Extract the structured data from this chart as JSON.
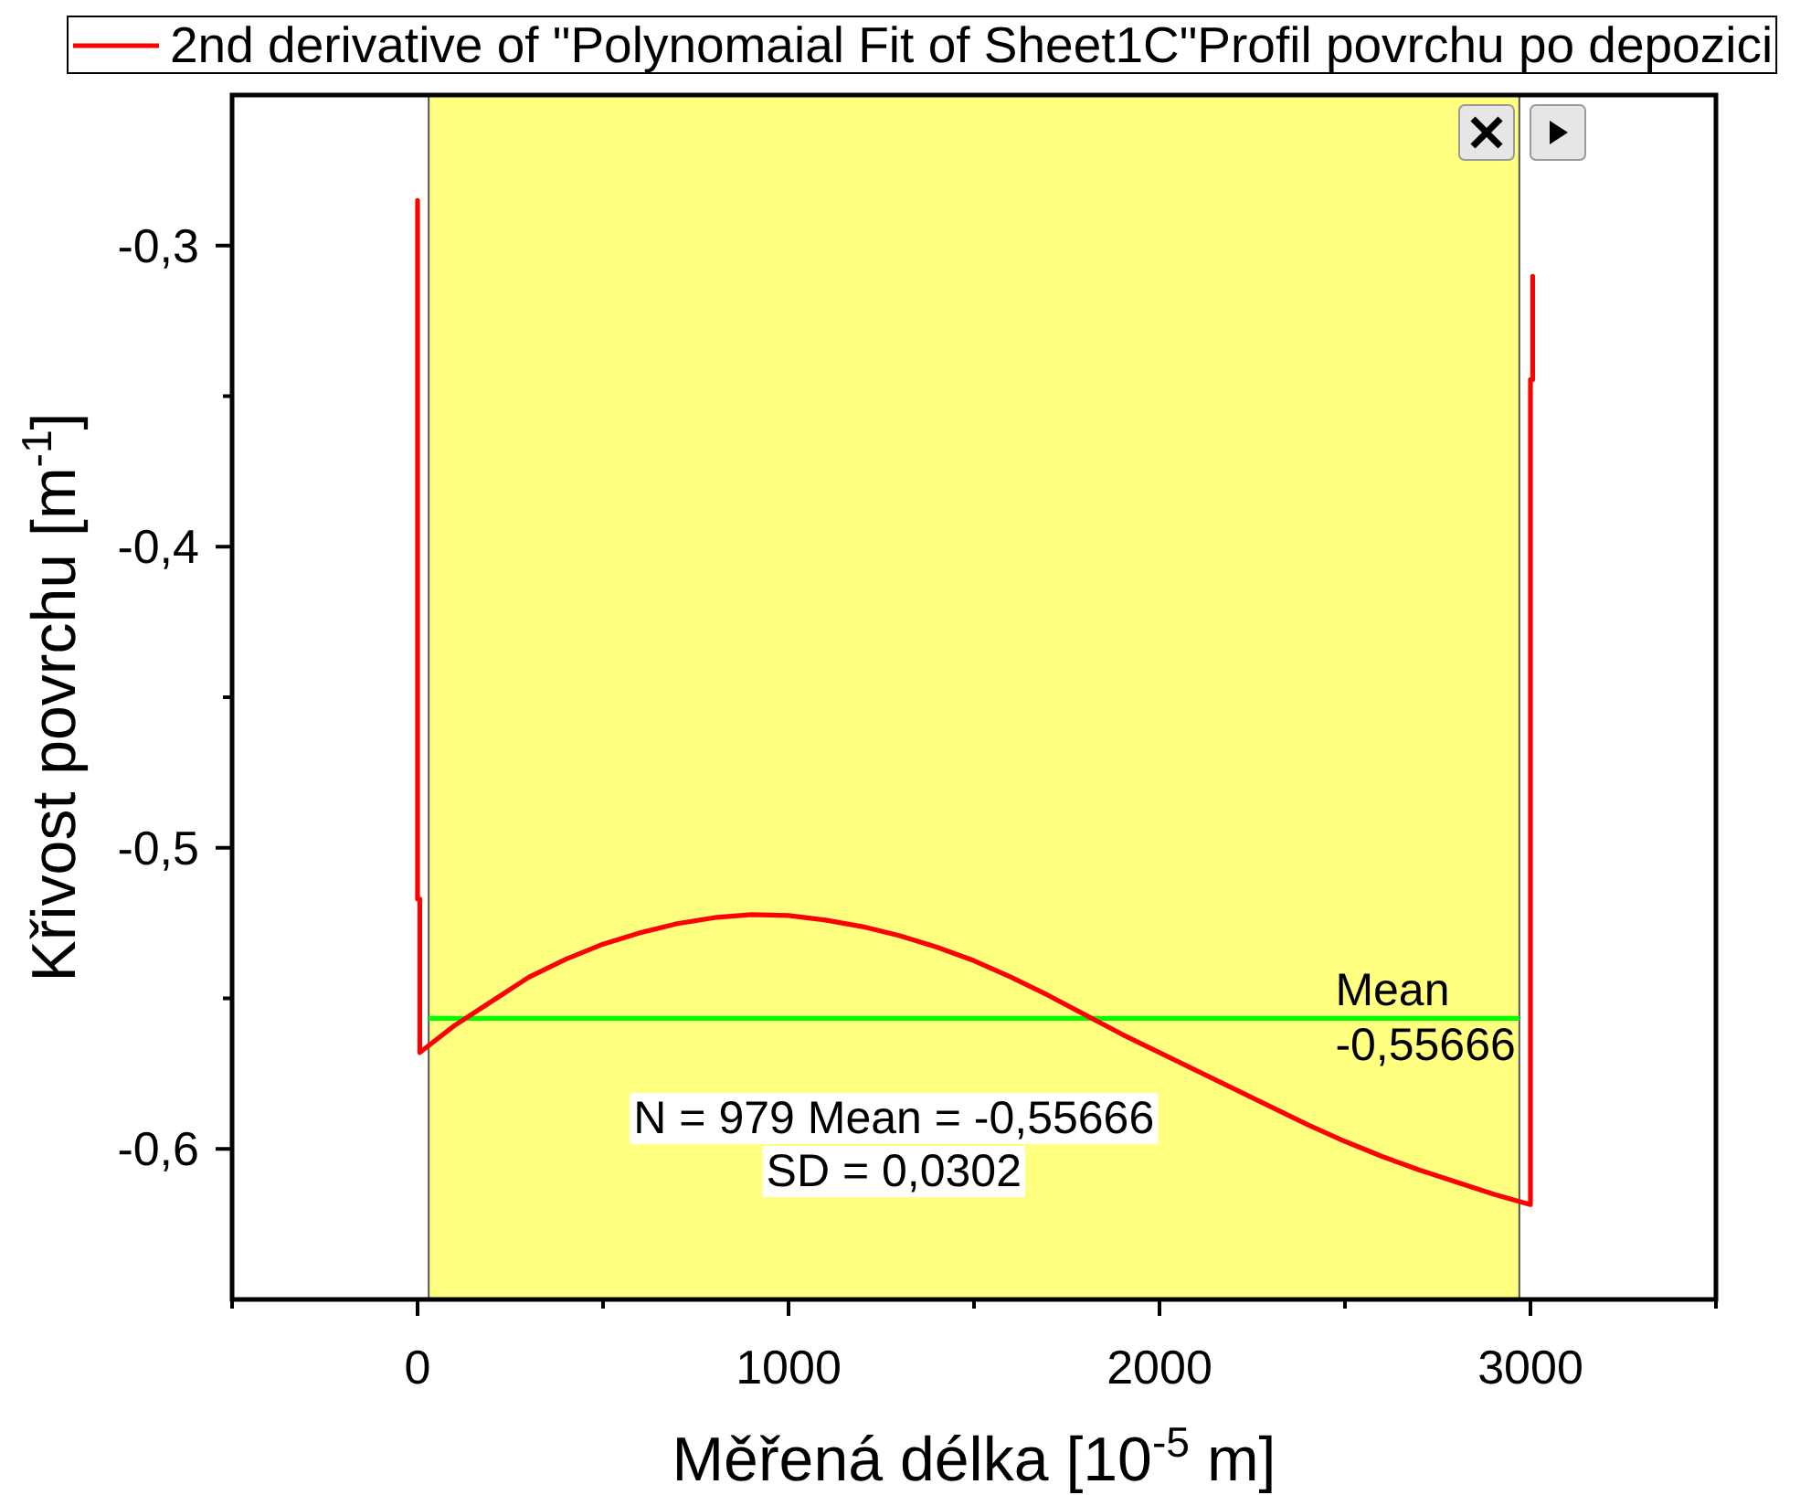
{
  "chart_data": {
    "type": "line",
    "xlabel": "Měřená délka [10$^{-5}$ m]",
    "ylabel": "Křivost povrchu [m$^{-1}$]",
    "xlim": [
      -500,
      3500
    ],
    "ylim": [
      -0.65,
      -0.25
    ],
    "xticks": [
      {
        "value": -500,
        "label": null
      },
      0,
      {
        "value": 500,
        "label": null
      },
      1000,
      {
        "value": 1500,
        "label": null
      },
      2000,
      {
        "value": 2500,
        "label": null
      },
      3000,
      {
        "value": 3500,
        "label": null
      }
    ],
    "yticks": [
      {
        "value": -0.6,
        "label": "-0,6"
      },
      {
        "value": -0.55,
        "label": null
      },
      {
        "value": -0.5,
        "label": "-0,5"
      },
      {
        "value": -0.45,
        "label": null
      },
      {
        "value": -0.4,
        "label": "-0,4"
      },
      {
        "value": -0.35,
        "label": null
      },
      {
        "value": -0.3,
        "label": "-0,3"
      }
    ],
    "x": [
      0,
      0,
      6,
      6,
      100,
      200,
      300,
      400,
      500,
      600,
      700,
      800,
      900,
      1000,
      1100,
      1200,
      1300,
      1400,
      1500,
      1600,
      1700,
      1800,
      1900,
      2000,
      2100,
      2200,
      2300,
      2400,
      2500,
      2600,
      2700,
      2800,
      2900,
      3000,
      3000,
      3006,
      3006
    ],
    "series": [
      {
        "name": "2nd derivative of \"Polynomaial Fit of Sheet1C\"Profil povrchu po depozici",
        "color": "#ff0000",
        "values": [
          -0.285,
          -0.517,
          -0.517,
          -0.568,
          -0.559,
          -0.551,
          -0.543,
          -0.537,
          -0.532,
          -0.5282,
          -0.5252,
          -0.5232,
          -0.5222,
          -0.5225,
          -0.524,
          -0.5262,
          -0.5292,
          -0.533,
          -0.5375,
          -0.543,
          -0.549,
          -0.5555,
          -0.562,
          -0.568,
          -0.574,
          -0.58,
          -0.586,
          -0.592,
          -0.5975,
          -0.6025,
          -0.607,
          -0.611,
          -0.615,
          -0.6185,
          -0.3445,
          -0.3445,
          -0.3102
        ]
      }
    ],
    "bands": [
      {
        "axis": "x",
        "from": 30,
        "to": 2970,
        "color": "#ffff80"
      }
    ],
    "ref_lines": [
      {
        "axis": "y",
        "value": -0.55666,
        "label": "Mean\n-0,55666",
        "color": "#00ff00"
      }
    ],
    "annotations": [
      "N = 979 Mean = -0,55666\nSD = 0,0302"
    ],
    "legend": "top"
  }
}
